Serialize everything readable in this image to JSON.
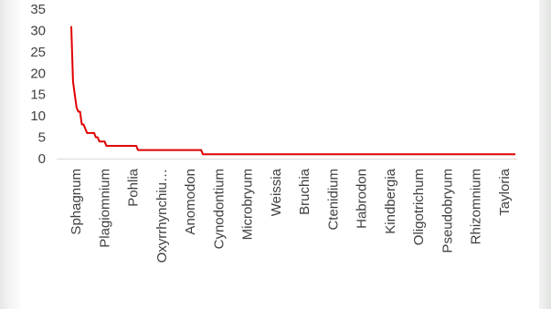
{
  "chart_data": {
    "type": "line",
    "title": "",
    "xlabel": "",
    "ylabel": "",
    "ylim": [
      0,
      35
    ],
    "yticks": [
      0,
      5,
      10,
      15,
      20,
      25,
      30,
      35
    ],
    "grid": false,
    "legend": "none",
    "line_color": "#e00000",
    "x_tick_labels": [
      "Sphagnum",
      "Plagiomnium",
      "Pohlia",
      "Oxyrrhynchiu…",
      "Anomodon",
      "Cynodontium",
      "Microbryum",
      "Weissia",
      "Bruchia",
      "Ctenidium",
      "Habrodon",
      "Kindbergia",
      "Oligotrichum",
      "Pseudobryum",
      "Rhizomnium",
      "Tayloria"
    ],
    "series": [
      {
        "values": [
          31,
          18,
          15,
          12,
          11,
          11,
          8,
          8,
          7,
          6,
          6,
          6,
          6,
          6,
          5,
          5,
          4,
          4,
          4,
          4,
          3,
          3,
          3,
          3,
          3,
          3,
          3,
          3,
          3,
          3,
          3,
          3,
          3,
          3,
          3,
          3,
          3,
          3,
          2,
          2,
          2,
          2,
          2,
          2,
          2,
          2,
          2,
          2,
          2,
          2,
          2,
          2,
          2,
          2,
          2,
          2,
          2,
          2,
          2,
          2,
          2,
          2,
          2,
          2,
          2,
          2,
          2,
          2,
          2,
          2,
          2,
          2,
          2,
          2,
          2,
          1,
          1,
          1,
          1,
          1,
          1,
          1,
          1,
          1,
          1,
          1,
          1,
          1,
          1,
          1,
          1,
          1,
          1,
          1,
          1,
          1,
          1,
          1,
          1,
          1,
          1,
          1,
          1,
          1,
          1,
          1,
          1,
          1,
          1,
          1,
          1,
          1,
          1,
          1,
          1,
          1,
          1,
          1,
          1,
          1,
          1,
          1,
          1,
          1,
          1,
          1,
          1,
          1,
          1,
          1,
          1,
          1,
          1,
          1,
          1,
          1,
          1,
          1,
          1,
          1,
          1,
          1,
          1,
          1,
          1,
          1,
          1,
          1,
          1,
          1,
          1,
          1,
          1,
          1,
          1,
          1,
          1,
          1,
          1,
          1,
          1,
          1,
          1,
          1,
          1,
          1,
          1,
          1,
          1,
          1,
          1,
          1,
          1,
          1,
          1,
          1,
          1,
          1,
          1,
          1,
          1,
          1,
          1,
          1,
          1,
          1,
          1,
          1,
          1,
          1,
          1,
          1,
          1,
          1,
          1,
          1,
          1,
          1,
          1,
          1,
          1,
          1,
          1,
          1,
          1,
          1,
          1,
          1,
          1,
          1,
          1,
          1,
          1,
          1,
          1,
          1,
          1,
          1,
          1,
          1,
          1,
          1,
          1,
          1,
          1,
          1,
          1,
          1,
          1,
          1,
          1,
          1,
          1,
          1,
          1,
          1,
          1,
          1,
          1,
          1,
          1,
          1,
          1,
          1,
          1,
          1,
          1,
          1,
          1,
          1,
          1,
          1,
          1,
          1
        ]
      }
    ]
  }
}
